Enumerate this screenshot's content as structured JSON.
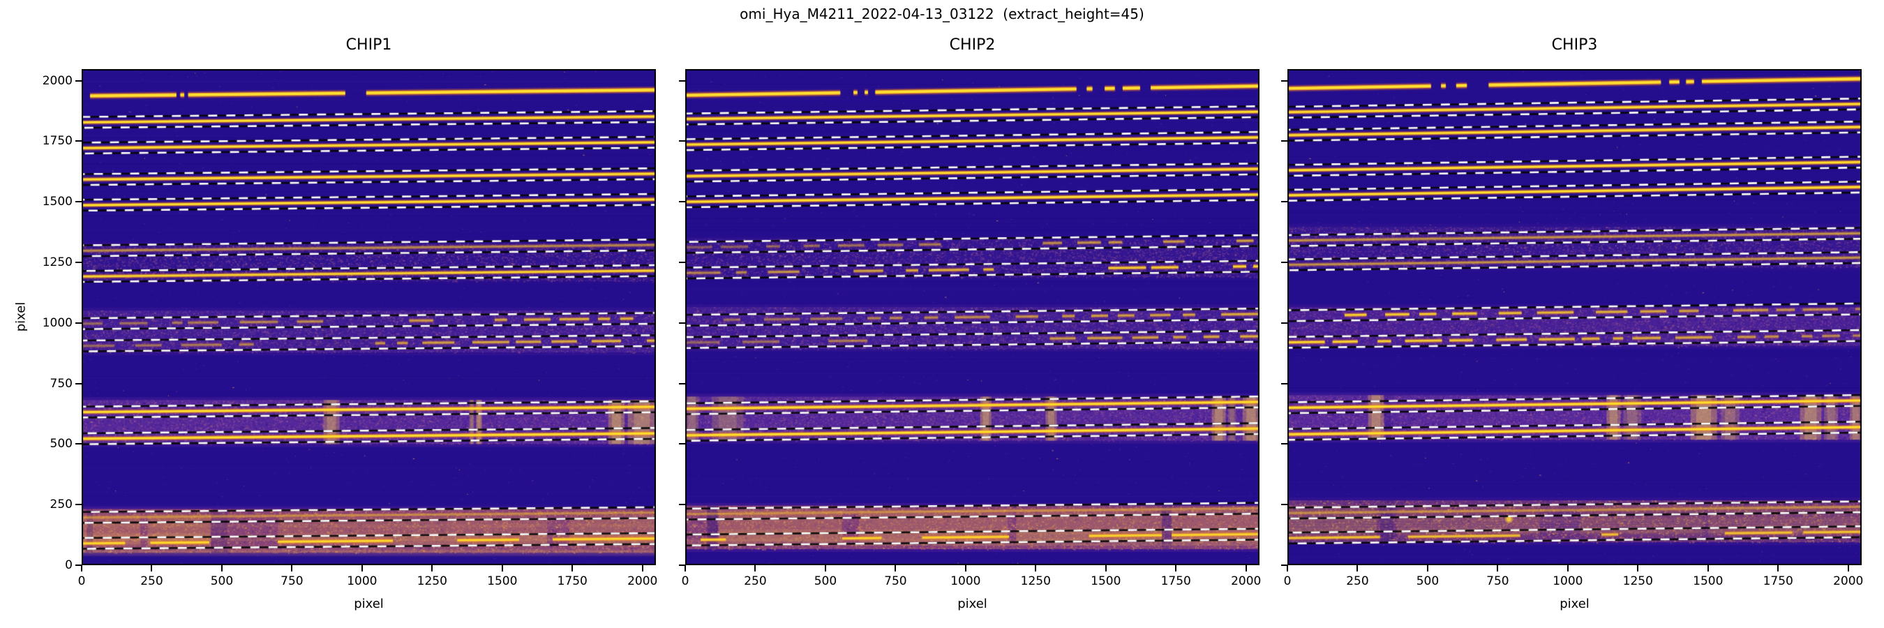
{
  "figure": {
    "title": "omi_Hya_M4211_2022-04-13_03122  (extract_height=45)"
  },
  "chart_data": {
    "type": "heatmap",
    "title": "omi_Hya_M4211_2022-04-13_03122  (extract_height=45)",
    "colormap": "plasma",
    "extract_height": 45,
    "xlabel": "pixel",
    "ylabel": "pixel",
    "xlim": [
      0,
      2048
    ],
    "ylim": [
      0,
      2048
    ],
    "xticks": [
      0,
      250,
      500,
      750,
      1000,
      1250,
      1500,
      1750,
      2000
    ],
    "yticks": [
      0,
      250,
      500,
      750,
      1000,
      1250,
      1500,
      1750,
      2000
    ],
    "colors": {
      "background": "#250e8e",
      "band_purple": "#7b3caa",
      "band_orange": "#d0784f",
      "trace_core": "#fde02d",
      "trace_mid": "#fbaa24",
      "trace_glow": "#e86e23",
      "boundary_white": "#ffffff",
      "boundary_black": "#000000"
    },
    "panels": [
      {
        "name": "CHIP1",
        "top_trace": {
          "y": 1937,
          "slope": 25,
          "x0": 30,
          "gaps": [
            [
              338,
              352
            ],
            [
              366,
              380
            ],
            [
              940,
              1015
            ]
          ]
        },
        "orders": [
          {
            "y": 1828,
            "slope": 24,
            "i": 1.0
          },
          {
            "y": 1722,
            "slope": 24,
            "i": 1.0
          },
          {
            "y": 1592,
            "slope": 24,
            "i": 1.0
          },
          {
            "y": 1486,
            "slope": 24,
            "i": 1.0
          },
          {
            "y": 1298,
            "slope": 24,
            "i": 0.38
          },
          {
            "y": 1192,
            "slope": 24,
            "i": 0.8
          },
          {
            "y": 997,
            "slope": 22,
            "i": 0.6,
            "broken": true,
            "bias": 1
          },
          {
            "y": 905,
            "slope": 22,
            "i": 0.6,
            "broken": true,
            "bias": 1
          },
          {
            "y": 632,
            "slope": 22,
            "i": 1.0
          },
          {
            "y": 522,
            "slope": 22,
            "i": 1.05
          },
          {
            "y": 197,
            "slope": 20,
            "i": 0.28
          },
          {
            "y": 90,
            "slope": 20,
            "i": 0.85,
            "segments": [
              [
                0,
                155
              ],
              [
                245,
                455
              ],
              [
                700,
                1110
              ],
              [
                1340,
                1560
              ],
              [
                1680,
                2048
              ]
            ]
          }
        ],
        "bands": [
          {
            "y1": 878,
            "y2": 1052,
            "tone": "purple",
            "level": 0.5
          },
          {
            "y1": 1172,
            "y2": 1330,
            "tone": "purple",
            "level": 0.2
          },
          {
            "y1": 500,
            "y2": 682,
            "tone": "purple",
            "level": 0.85,
            "streaks": [
              [
                862,
                920,
                0.8
              ],
              [
                1382,
                1400,
                0.65
              ],
              [
                1406,
                1428,
                0.9
              ],
              [
                1878,
                1936,
                0.95
              ],
              [
                1948,
                2048,
                0.85
              ]
            ],
            "darks": [
              [
                1400,
                1406,
                0.3
              ]
            ]
          },
          {
            "y1": 52,
            "y2": 232,
            "tone": "orange",
            "level": 1.0,
            "patches": [
              [
                0,
                210,
                0.95
              ],
              [
                235,
                460,
                1.0
              ],
              [
                700,
                1300,
                0.65
              ],
              [
                1300,
                1660,
                0.7
              ],
              [
                1740,
                2048,
                0.8
              ]
            ],
            "darks": [
              [
                18,
                40,
                0.45
              ],
              [
                462,
                520,
                0.35
              ]
            ]
          }
        ],
        "blobs": []
      },
      {
        "name": "CHIP2",
        "top_trace": {
          "y": 1940,
          "slope": 38,
          "x0": 0,
          "gaps": [
            [
              553,
              600
            ],
            [
              614,
              640
            ],
            [
              652,
              678
            ],
            [
              1395,
              1432
            ],
            [
              1452,
              1496
            ],
            [
              1532,
              1560
            ],
            [
              1622,
              1660
            ]
          ]
        },
        "orders": [
          {
            "y": 1842,
            "slope": 30,
            "i": 1.0
          },
          {
            "y": 1736,
            "slope": 30,
            "i": 1.0
          },
          {
            "y": 1606,
            "slope": 30,
            "i": 1.0
          },
          {
            "y": 1500,
            "slope": 30,
            "i": 1.0
          },
          {
            "y": 1312,
            "slope": 28,
            "i": 0.5,
            "broken": true,
            "bias": 1
          },
          {
            "y": 1206,
            "slope": 28,
            "i": 0.85,
            "broken": true,
            "bias": 1
          },
          {
            "y": 1011,
            "slope": 26,
            "i": 0.55,
            "broken": true,
            "bias": 1
          },
          {
            "y": 919,
            "slope": 26,
            "i": 0.55,
            "broken": true,
            "bias": 1
          },
          {
            "y": 646,
            "slope": 28,
            "i": 1.0
          },
          {
            "y": 536,
            "slope": 28,
            "i": 1.05
          },
          {
            "y": 211,
            "slope": 24,
            "i": 0.28
          },
          {
            "y": 104,
            "slope": 24,
            "i": 0.8,
            "segments": [
              [
                55,
                145
              ],
              [
                560,
                700
              ],
              [
                845,
                1155
              ],
              [
                1440,
                1700
              ],
              [
                1735,
                2048
              ]
            ]
          }
        ],
        "bands": [
          {
            "y1": 892,
            "y2": 1066,
            "tone": "purple",
            "level": 0.5
          },
          {
            "y1": 1188,
            "y2": 1348,
            "tone": "purple",
            "level": 0.25
          },
          {
            "y1": 514,
            "y2": 696,
            "tone": "purple",
            "level": 0.85,
            "streaks": [
              [
                0,
                48,
                0.6
              ],
              [
                95,
                208,
                0.55
              ],
              [
                1052,
                1092,
                0.9
              ],
              [
                1285,
                1325,
                0.85
              ],
              [
                1878,
                1928,
                0.9
              ],
              [
                1936,
                1964,
                0.55
              ],
              [
                1988,
                2048,
                0.9
              ]
            ]
          },
          {
            "y1": 66,
            "y2": 246,
            "tone": "orange",
            "level": 0.95,
            "patches": [
              [
                120,
                560,
                0.9
              ],
              [
                620,
                1150,
                0.85
              ],
              [
                1180,
                1700,
                0.8
              ],
              [
                1735,
                2048,
                0.85
              ]
            ],
            "darks": [
              [
                78,
                116,
                0.7
              ],
              [
                1700,
                1734,
                0.35
              ]
            ]
          }
        ],
        "blobs": []
      },
      {
        "name": "CHIP3",
        "top_trace": {
          "y": 1968,
          "slope": 40,
          "x0": 0,
          "gaps": [
            [
              512,
              548
            ],
            [
              565,
              602
            ],
            [
              640,
              718
            ],
            [
              1332,
              1362
            ],
            [
              1398,
              1422
            ],
            [
              1450,
              1478
            ]
          ]
        },
        "orders": [
          {
            "y": 1870,
            "slope": 34,
            "i": 1.0
          },
          {
            "y": 1775,
            "slope": 34,
            "i": 1.0
          },
          {
            "y": 1630,
            "slope": 34,
            "i": 1.0
          },
          {
            "y": 1527,
            "slope": 34,
            "i": 1.0
          },
          {
            "y": 1340,
            "slope": 30,
            "i": 0.42
          },
          {
            "y": 1240,
            "slope": 30,
            "i": 0.42
          },
          {
            "y": 1030,
            "slope": 28,
            "i": 0.85,
            "broken": true,
            "bias": -1
          },
          {
            "y": 920,
            "slope": 28,
            "i": 0.85,
            "broken": true,
            "bias": -1
          },
          {
            "y": 650,
            "slope": 30,
            "i": 1.0
          },
          {
            "y": 540,
            "slope": 30,
            "i": 1.05
          },
          {
            "y": 215,
            "slope": 26,
            "i": 0.3
          },
          {
            "y": 112,
            "slope": 26,
            "i": 0.65,
            "segments": [
              [
                0,
                330
              ],
              [
                430,
                830
              ],
              [
                1120,
                1180
              ],
              [
                1560,
                1800
              ],
              [
                1840,
                2048
              ]
            ]
          }
        ],
        "bands": [
          {
            "y1": 905,
            "y2": 1065,
            "tone": "purple",
            "level": 0.6
          },
          {
            "y1": 1228,
            "y2": 1398,
            "tone": "purple",
            "level": 0.3
          },
          {
            "y1": 518,
            "y2": 702,
            "tone": "purple",
            "level": 0.9,
            "streaks": [
              [
                288,
                344,
                0.9
              ],
              [
                1138,
                1188,
                0.85
              ],
              [
                1198,
                1262,
                0.55
              ],
              [
                1438,
                1532,
                0.95
              ],
              [
                1546,
                1612,
                0.6
              ],
              [
                1828,
                1904,
                0.85
              ],
              [
                1914,
                1964,
                0.6
              ],
              [
                2006,
                2048,
                0.8
              ]
            ],
            "darks": [
              [
                348,
                368,
                0.45
              ]
            ]
          },
          {
            "y1": 95,
            "y2": 268,
            "tone": "orange",
            "level": 0.6,
            "patches": [
              [
                0,
                320,
                0.5
              ],
              [
                390,
                900,
                0.45
              ],
              [
                1050,
                1480,
                0.4
              ],
              [
                1500,
                2048,
                0.45
              ]
            ],
            "darks": [
              [
                332,
                378,
                0.4
              ]
            ]
          }
        ],
        "blobs": [
          [
            790,
            190
          ]
        ]
      }
    ]
  }
}
